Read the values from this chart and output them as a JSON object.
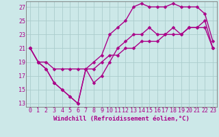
{
  "xlabel": "Windchill (Refroidissement éolien,°C)",
  "bg_color": "#cce8e8",
  "grid_color": "#aacccc",
  "line_color": "#aa0088",
  "xlim": [
    -0.5,
    23.5
  ],
  "ylim": [
    12.5,
    27.8
  ],
  "xticks": [
    0,
    1,
    2,
    3,
    4,
    5,
    6,
    7,
    8,
    9,
    10,
    11,
    12,
    13,
    14,
    15,
    16,
    17,
    18,
    19,
    20,
    21,
    22,
    23
  ],
  "yticks": [
    13,
    15,
    17,
    19,
    21,
    23,
    25,
    27
  ],
  "line1_x": [
    0,
    1,
    2,
    3,
    4,
    5,
    6,
    7,
    8,
    9,
    10,
    11,
    12,
    13,
    14,
    15,
    16,
    17,
    18,
    19,
    20,
    21,
    22,
    23
  ],
  "line1_y": [
    21,
    19,
    18,
    16,
    15,
    14,
    13,
    18,
    16,
    17,
    19,
    21,
    22,
    23,
    23,
    24,
    23,
    23,
    24,
    23,
    24,
    24,
    25,
    21
  ],
  "line2_x": [
    0,
    1,
    2,
    3,
    4,
    5,
    6,
    7,
    8,
    9,
    10,
    11,
    12,
    13,
    14,
    15,
    16,
    17,
    18,
    19,
    20,
    21,
    22,
    23
  ],
  "line2_y": [
    21,
    19,
    18,
    16,
    15,
    14,
    13,
    18,
    19,
    20,
    23,
    24,
    25,
    27,
    27.5,
    27,
    27,
    27,
    27.5,
    27,
    27,
    27,
    26,
    22
  ],
  "line3_x": [
    0,
    1,
    2,
    3,
    4,
    5,
    6,
    7,
    8,
    9,
    10,
    11,
    12,
    13,
    14,
    15,
    16,
    17,
    18,
    19,
    20,
    21,
    22,
    23
  ],
  "line3_y": [
    21,
    19,
    19,
    18,
    18,
    18,
    18,
    18,
    18,
    19,
    20,
    20,
    21,
    21,
    22,
    22,
    22,
    23,
    23,
    23,
    24,
    24,
    24,
    21
  ],
  "marker": "D",
  "marker_size": 2.5,
  "line_width": 1.0,
  "xlabel_fontsize": 6.5,
  "tick_fontsize": 6.0
}
